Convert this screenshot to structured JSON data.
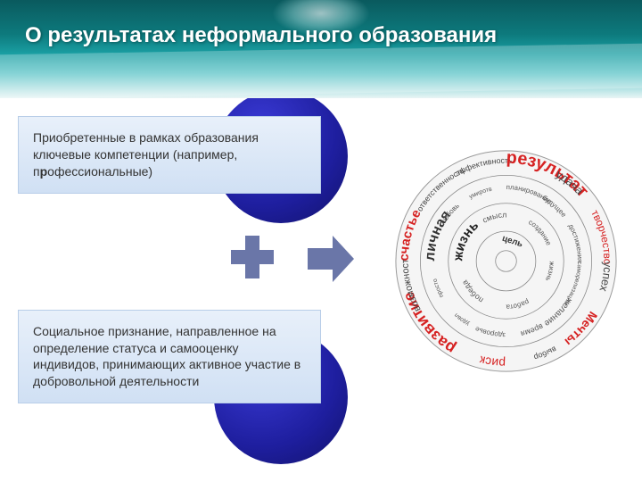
{
  "title": "О результатах неформального образования",
  "textbox1": {
    "line1": "Приобретенные в рамках образования",
    "line2": "ключевые компетенции (например,",
    "line3_pre": "п",
    "line3_bold": "р",
    "line3_post": "офессиональные)"
  },
  "textbox2": "Социальное признание, направленное на определение статуса и самооценку индивидов, принимающих активное участие в добровольной деятельности",
  "wheel": {
    "outer_words": [
      {
        "text": "счастье",
        "color": "#d62222",
        "size": 15,
        "weight": "bold"
      },
      {
        "text": "ответственность",
        "color": "#444",
        "size": 9
      },
      {
        "text": "эффективность",
        "color": "#444",
        "size": 9
      },
      {
        "text": "результат",
        "color": "#d62222",
        "size": 20,
        "weight": "bold"
      },
      {
        "text": "удача",
        "color": "#444",
        "size": 13
      },
      {
        "text": "творчество",
        "color": "#d62222",
        "size": 12
      },
      {
        "text": "успех",
        "color": "#444",
        "size": 13
      },
      {
        "text": "Мечты",
        "color": "#d62222",
        "size": 14,
        "weight": "bold"
      },
      {
        "text": "выбор",
        "color": "#444",
        "size": 9
      },
      {
        "text": "риск",
        "color": "#d62222",
        "size": 14
      },
      {
        "text": "развитие",
        "color": "#d62222",
        "size": 18,
        "weight": "bold"
      },
      {
        "text": "возможности",
        "color": "#444",
        "size": 11
      }
    ],
    "mid_words": [
      {
        "text": "личная",
        "color": "#333",
        "size": 16,
        "weight": "bold"
      },
      {
        "text": "любовь",
        "color": "#555",
        "size": 8
      },
      {
        "text": "умиротв",
        "color": "#555",
        "size": 7
      },
      {
        "text": "планирование",
        "color": "#555",
        "size": 8
      },
      {
        "text": "будущее",
        "color": "#555",
        "size": 8
      },
      {
        "text": "достижения",
        "color": "#555",
        "size": 8
      },
      {
        "text": "саморелизация",
        "color": "#555",
        "size": 7
      },
      {
        "text": "желание",
        "color": "#555",
        "size": 10
      },
      {
        "text": "время",
        "color": "#555",
        "size": 9
      },
      {
        "text": "здоровье",
        "color": "#555",
        "size": 8
      },
      {
        "text": "удовл",
        "color": "#555",
        "size": 7
      },
      {
        "text": "просто",
        "color": "#555",
        "size": 7
      }
    ],
    "inner_words": [
      {
        "text": "жизнь",
        "color": "#222",
        "size": 15,
        "weight": "bold"
      },
      {
        "text": "смысл",
        "color": "#555",
        "size": 9
      },
      {
        "text": "создание",
        "color": "#555",
        "size": 8
      },
      {
        "text": "жизнь",
        "color": "#555",
        "size": 8
      },
      {
        "text": "работа",
        "color": "#555",
        "size": 8
      },
      {
        "text": "победа",
        "color": "#555",
        "size": 9
      }
    ],
    "center": {
      "text": "цель",
      "color": "#333",
      "size": 10,
      "weight": "bold"
    },
    "colors": {
      "bg": "#f5f5f5",
      "ring": "#888",
      "primary": "#d62222",
      "secondary": "#444"
    }
  },
  "shapes": {
    "circle_fill": "#1e1e9e",
    "arrow_plus_fill": "#6a76a8"
  }
}
